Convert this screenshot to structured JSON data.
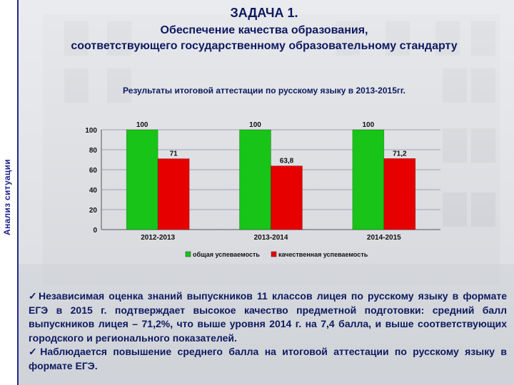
{
  "header": {
    "line1": "ЗАДАЧА 1.",
    "line2": "Обеспечение качества образования,",
    "line3": "соответствующего государственному образовательному стандарту"
  },
  "sidebar": {
    "label": "Анализ ситуации"
  },
  "colors": {
    "green": "#17c417",
    "red": "#e60000",
    "navy": "#0d1a60"
  },
  "chart_data": {
    "type": "bar",
    "title": "Результаты итоговой аттестации по русскому языку в 2013-2015гг.",
    "categories": [
      "2012-2013",
      "2013-2014",
      "2014-2015"
    ],
    "series": [
      {
        "name": "общая успеваемость",
        "values": [
          100,
          100,
          100
        ],
        "labels": [
          "100",
          "100",
          "100"
        ],
        "color": "#17c417"
      },
      {
        "name": "качественная успеваемость",
        "values": [
          71,
          63.8,
          71.2
        ],
        "labels": [
          "71",
          "63,8",
          "71,2"
        ],
        "color": "#e60000"
      }
    ],
    "ylim": [
      0,
      100
    ],
    "yticks": [
      0,
      20,
      40,
      60,
      80,
      100
    ],
    "legend": "bottom"
  },
  "text": {
    "para1": "Независимая оценка знаний выпускников 11 классов лицея по русскому языку в формате ЕГЭ в 2015 г. подтверждает высокое качество предметной подготовки: средний балл выпускников лицея – 71,2%, что выше уровня 2014 г. на 7,4 балла, и выше соответствующих городского и регионального показателей.",
    "para2": "Наблюдается повышение среднего балла на итоговой аттестации по русскому языку в формате ЕГЭ.",
    "check": "✓"
  }
}
